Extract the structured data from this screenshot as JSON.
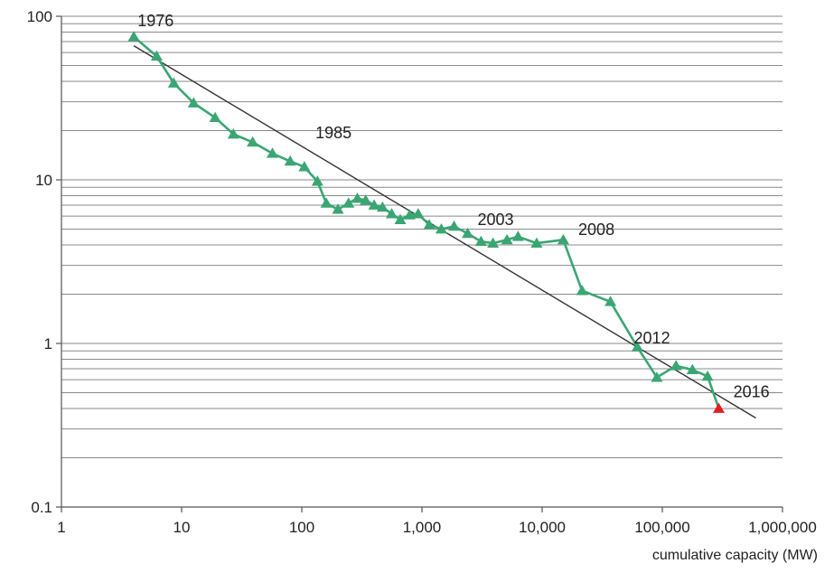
{
  "chart_data": {
    "type": "line",
    "x_scale": "log",
    "y_scale": "log",
    "xlim": [
      1,
      1000000
    ],
    "ylim": [
      0.1,
      100
    ],
    "xlabel": "cumulative capacity (MW)",
    "ylabel": "",
    "title": "",
    "grid": "horizontal",
    "x_ticks": [
      {
        "value": 1,
        "label": "1"
      },
      {
        "value": 10,
        "label": "10"
      },
      {
        "value": 100,
        "label": "100"
      },
      {
        "value": 1000,
        "label": "1,000"
      },
      {
        "value": 10000,
        "label": "10,000"
      },
      {
        "value": 100000,
        "label": "100,000"
      },
      {
        "value": 1000000,
        "label": "1,000,000"
      }
    ],
    "y_ticks": [
      {
        "value": 0.1,
        "label": "0.1"
      },
      {
        "value": 1,
        "label": "1"
      },
      {
        "value": 10,
        "label": "10"
      },
      {
        "value": 100,
        "label": "100"
      }
    ],
    "series": [
      {
        "color": "#3aa673",
        "marker": "triangle",
        "points": [
          {
            "x": 4,
            "y": 75
          },
          {
            "x": 6.2,
            "y": 57
          },
          {
            "x": 8.6,
            "y": 39
          },
          {
            "x": 12.6,
            "y": 29.5
          },
          {
            "x": 19,
            "y": 24
          },
          {
            "x": 27,
            "y": 19
          },
          {
            "x": 39,
            "y": 17
          },
          {
            "x": 57,
            "y": 14.5
          },
          {
            "x": 80,
            "y": 13
          },
          {
            "x": 105,
            "y": 12
          },
          {
            "x": 135,
            "y": 9.8
          },
          {
            "x": 160,
            "y": 7.2
          },
          {
            "x": 200,
            "y": 6.6
          },
          {
            "x": 245,
            "y": 7.2
          },
          {
            "x": 290,
            "y": 7.7
          },
          {
            "x": 340,
            "y": 7.5
          },
          {
            "x": 400,
            "y": 7.0
          },
          {
            "x": 470,
            "y": 6.8
          },
          {
            "x": 560,
            "y": 6.2
          },
          {
            "x": 660,
            "y": 5.7
          },
          {
            "x": 790,
            "y": 6.1
          },
          {
            "x": 930,
            "y": 6.2
          },
          {
            "x": 1150,
            "y": 5.3
          },
          {
            "x": 1450,
            "y": 5.0
          },
          {
            "x": 1850,
            "y": 5.2
          },
          {
            "x": 2400,
            "y": 4.7
          },
          {
            "x": 3100,
            "y": 4.2
          },
          {
            "x": 3900,
            "y": 4.1
          },
          {
            "x": 5100,
            "y": 4.3
          },
          {
            "x": 6300,
            "y": 4.5
          },
          {
            "x": 9000,
            "y": 4.1
          },
          {
            "x": 15000,
            "y": 4.3
          },
          {
            "x": 21500,
            "y": 2.1
          },
          {
            "x": 37000,
            "y": 1.8
          },
          {
            "x": 62000,
            "y": 0.95
          },
          {
            "x": 90000,
            "y": 0.62
          },
          {
            "x": 130000,
            "y": 0.73
          },
          {
            "x": 178000,
            "y": 0.69
          },
          {
            "x": 238000,
            "y": 0.63
          },
          {
            "x": 295000,
            "y": 0.4,
            "color": "#e02020"
          }
        ]
      }
    ],
    "trend_line": {
      "color": "#333333",
      "points": [
        {
          "x": 4,
          "y": 66
        },
        {
          "x": 600000,
          "y": 0.35
        }
      ]
    },
    "annotations": [
      {
        "text": "1976",
        "x": 4.3,
        "y": 87
      },
      {
        "text": "1985",
        "x": 130,
        "y": 18
      },
      {
        "text": "2003",
        "x": 2900,
        "y": 5.3
      },
      {
        "text": "2008",
        "x": 20000,
        "y": 4.6
      },
      {
        "text": "2012",
        "x": 58000,
        "y": 1.0
      },
      {
        "text": "2016",
        "x": 390000,
        "y": 0.47
      }
    ]
  }
}
